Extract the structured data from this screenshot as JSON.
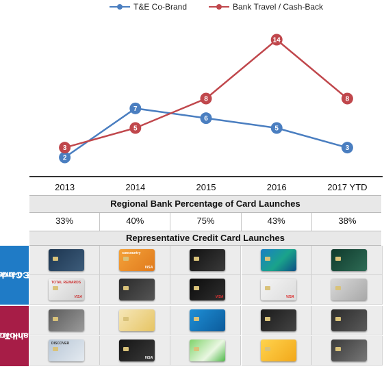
{
  "chart_data": {
    "type": "line",
    "categories": [
      "2013",
      "2014",
      "2015",
      "2016",
      "2017 YTD"
    ],
    "series": [
      {
        "name": "T&E Co-Brand",
        "values": [
          2,
          7,
          6,
          5,
          3
        ],
        "color": "#4a7ec0"
      },
      {
        "name": "Bank Travel / Cash-Back",
        "values": [
          3,
          5,
          8,
          14,
          8
        ],
        "color": "#c0474c"
      }
    ],
    "legend": "top",
    "grid": false
  },
  "table": {
    "pct_title": "Regional Bank Percentage of Card Launches",
    "percentages": [
      "33%",
      "40%",
      "75%",
      "43%",
      "38%"
    ],
    "cards_title": "Representative Credit Card Launches",
    "group_cobrand_label": "Co-brand T&E Cards",
    "group_cobrand_line1": "Co-brand",
    "group_cobrand_line2": "T&E Cards",
    "group_bank_label": "Bank Travel / Cash-back",
    "group_bank_line1": "Bank Travel",
    "group_bank_line2": "/ Cash-back",
    "colors": {
      "cobrand": "#1f7bc6",
      "bank": "#a71d47"
    }
  },
  "cards": [
    [
      {
        "brand": "",
        "net": "",
        "bg": "linear-gradient(135deg,#1c3550,#3d5c7a)",
        "fg": "#fff"
      },
      {
        "brand": "suncountry",
        "net": "VISA",
        "bg": "linear-gradient(135deg,#f4a23a,#e07a1c)",
        "fg": "#fff"
      },
      {
        "brand": "",
        "net": "",
        "bg": "linear-gradient(135deg,#111,#3a3a3a)",
        "fg": "#fff"
      },
      {
        "brand": "",
        "net": "",
        "bg": "linear-gradient(135deg,#1b7fc4,#1aa38a 55%,#0d4f86)",
        "fg": "#fff"
      },
      {
        "brand": "",
        "net": "",
        "bg": "linear-gradient(135deg,#0f3a2c,#2e6b55)",
        "fg": "#fff"
      }
    ],
    [
      {
        "brand": "TOTAL REWARDS",
        "net": "VISA",
        "bg": "linear-gradient(135deg,#f2f2f2,#cfcfcf)",
        "fg": "#c33"
      },
      {
        "brand": "",
        "net": "",
        "bg": "linear-gradient(135deg,#2a2a2a,#555)",
        "fg": "#fff"
      },
      {
        "brand": "",
        "net": "VISA",
        "bg": "linear-gradient(135deg,#0c0c0c,#2f2f2f)",
        "fg": "#e33"
      },
      {
        "brand": "",
        "net": "VISA",
        "bg": "linear-gradient(135deg,#f4f4f4,#dcdcdc)",
        "fg": "#d22"
      },
      {
        "brand": "",
        "net": "",
        "bg": "linear-gradient(135deg,#d9d9d9,#a8a8a8)",
        "fg": "#333"
      }
    ],
    [
      {
        "brand": "",
        "net": "",
        "bg": "linear-gradient(135deg,#5a5a5a,#9a9a9a)",
        "fg": "#fff"
      },
      {
        "brand": "",
        "net": "",
        "bg": "linear-gradient(135deg,#f6e7b8,#e6c463)",
        "fg": "#333"
      },
      {
        "brand": "",
        "net": "",
        "bg": "linear-gradient(135deg,#1e8fd6,#0c5b9b)",
        "fg": "#fff"
      },
      {
        "brand": "",
        "net": "",
        "bg": "linear-gradient(135deg,#1a1a1a,#444)",
        "fg": "#fff"
      },
      {
        "brand": "",
        "net": "",
        "bg": "linear-gradient(135deg,#2b2b2b,#5a5a5a)",
        "fg": "#fff"
      }
    ],
    [
      {
        "brand": "DISCOVER",
        "net": "",
        "bg": "linear-gradient(135deg,#b7c6d6,#e4eaf0)",
        "fg": "#333"
      },
      {
        "brand": "",
        "net": "VISA",
        "bg": "linear-gradient(135deg,#151515,#3a3a3a)",
        "fg": "#fff"
      },
      {
        "brand": "",
        "net": "",
        "bg": "linear-gradient(135deg,#7fd36a,#eaf7e2 60%,#4fb84a)",
        "fg": "#333"
      },
      {
        "brand": "",
        "net": "",
        "bg": "linear-gradient(135deg,#ffd34d,#f2a81a)",
        "fg": "#333"
      },
      {
        "brand": "",
        "net": "",
        "bg": "linear-gradient(135deg,#3a3a3a,#777)",
        "fg": "#fff"
      }
    ]
  ]
}
